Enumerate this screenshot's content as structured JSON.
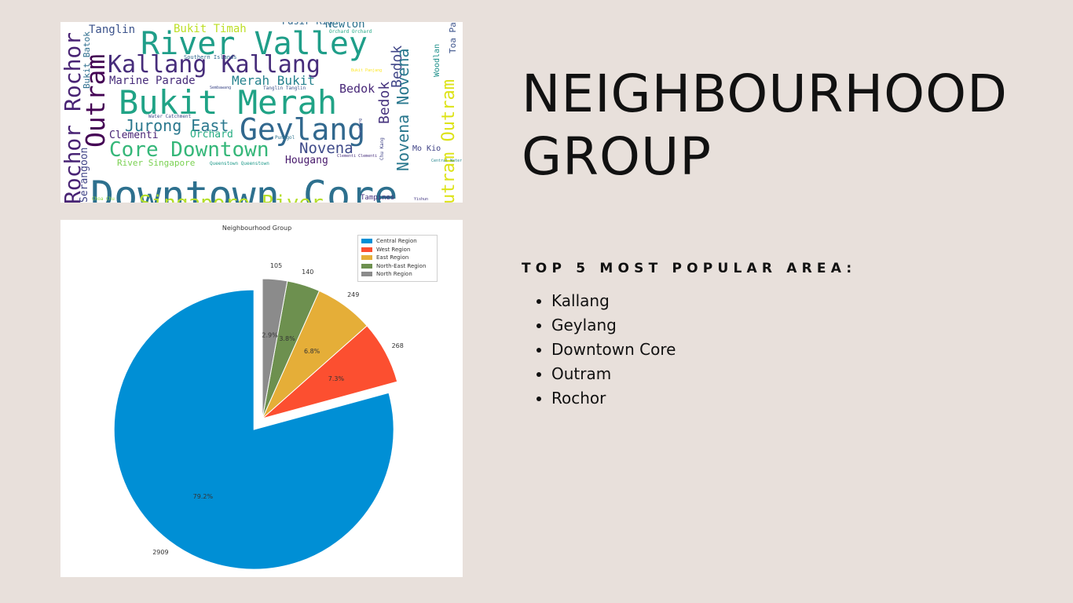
{
  "title": "NEIGHBOURHOOD\nGROUP",
  "subheading": "TOP 5 MOST POPULAR AREA:",
  "top_areas": [
    "Kallang",
    "Geylang",
    "Downtown Core",
    "Outram",
    "Rochor"
  ],
  "colors": {
    "background": "#e8e0db",
    "text": "#111111",
    "panel": "#ffffff"
  },
  "wordcloud": {
    "words": [
      {
        "text": "Downtown Core",
        "color": "#2d708e"
      },
      {
        "text": "Bukit Merah",
        "color": "#20a386"
      },
      {
        "text": "Geylang",
        "color": "#31688e"
      },
      {
        "text": "River Valley",
        "color": "#1f9e89"
      },
      {
        "text": "Kallang Kallang",
        "color": "#472d7b"
      },
      {
        "text": "Kallang",
        "color": "#3b528b"
      },
      {
        "text": "Rochor Rochor",
        "color": "#482374"
      },
      {
        "text": "Outram",
        "color": "#440154"
      },
      {
        "text": "Core Downtown",
        "color": "#35b779"
      },
      {
        "text": "Jurong East",
        "color": "#2a788e"
      },
      {
        "text": "Novena",
        "color": "#3e4a89"
      },
      {
        "text": "Merah Bukit",
        "color": "#26828e"
      },
      {
        "text": "Marine Parade",
        "color": "#472c7a"
      },
      {
        "text": "Tanglin",
        "color": "#3b528b"
      },
      {
        "text": "Bukit Timah",
        "color": "#bddf26"
      },
      {
        "text": "Newton",
        "color": "#2c728e"
      },
      {
        "text": "Pasir Ris",
        "color": "#31688e"
      },
      {
        "text": "Bedok",
        "color": "#482878"
      },
      {
        "text": "Bedok",
        "color": "#46337e"
      },
      {
        "text": "Bedok",
        "color": "#404688"
      },
      {
        "text": "Novena Novena",
        "color": "#2a788e"
      },
      {
        "text": "utram Outram",
        "color": "#dde318"
      },
      {
        "text": "Clementi",
        "color": "#482475"
      },
      {
        "text": "Orchard",
        "color": "#25ac82"
      },
      {
        "text": "Hougang",
        "color": "#481a6c"
      },
      {
        "text": "River Singapore",
        "color": "#7ad151"
      },
      {
        "text": "Singapore River",
        "color": "#b5de2b"
      },
      {
        "text": "Serangoon",
        "color": "#414487"
      },
      {
        "text": "Bukit Batok",
        "color": "#2e6e8e"
      },
      {
        "text": "Mo Kio",
        "color": "#414487"
      },
      {
        "text": "Toa Pa",
        "color": "#3b528b"
      },
      {
        "text": "Woodlan",
        "color": "#21918c"
      },
      {
        "text": "Tampines",
        "color": "#46327e"
      },
      {
        "text": "Sembawang",
        "color": "#3e4989"
      },
      {
        "text": "Southern Islands",
        "color": "#31688e"
      },
      {
        "text": "Orchard Orchard",
        "color": "#22a884"
      },
      {
        "text": "Tanglin Tanglin",
        "color": "#3b528b"
      },
      {
        "text": "Water Catchment",
        "color": "#3e4a89"
      },
      {
        "text": "Punggol",
        "color": "#2c738e"
      },
      {
        "text": "Queenstown Queenstown",
        "color": "#1f9a8a"
      },
      {
        "text": "Clementi Clementi",
        "color": "#472f7d"
      },
      {
        "text": "Central Water",
        "color": "#25858e"
      },
      {
        "text": "Chu Kang",
        "color": "#404387"
      },
      {
        "text": "Sengkang",
        "color": "#3f4788"
      },
      {
        "text": "Choa Chu",
        "color": "#8fd744"
      },
      {
        "text": "Bukit Panjang",
        "color": "#fde725"
      },
      {
        "text": "Yishun",
        "color": "#443983"
      }
    ]
  },
  "chart_data": {
    "type": "pie",
    "title": "Neighbourhood Group",
    "labels": [
      "Central Region",
      "West Region",
      "East Region",
      "North-East Region",
      "North Region"
    ],
    "values": [
      2909,
      268,
      249,
      140,
      105
    ],
    "percent_labels": [
      "79.2%",
      "7.3%",
      "6.8%",
      "3.8%",
      "2.9%"
    ],
    "value_labels": [
      "2909",
      "268",
      "249",
      "140",
      "105"
    ],
    "colors": [
      "#008fd5",
      "#fc4f30",
      "#e5ae38",
      "#6d904f",
      "#8b8b8b"
    ],
    "exploded": [
      "Central Region"
    ],
    "legend_position": "top-right"
  }
}
